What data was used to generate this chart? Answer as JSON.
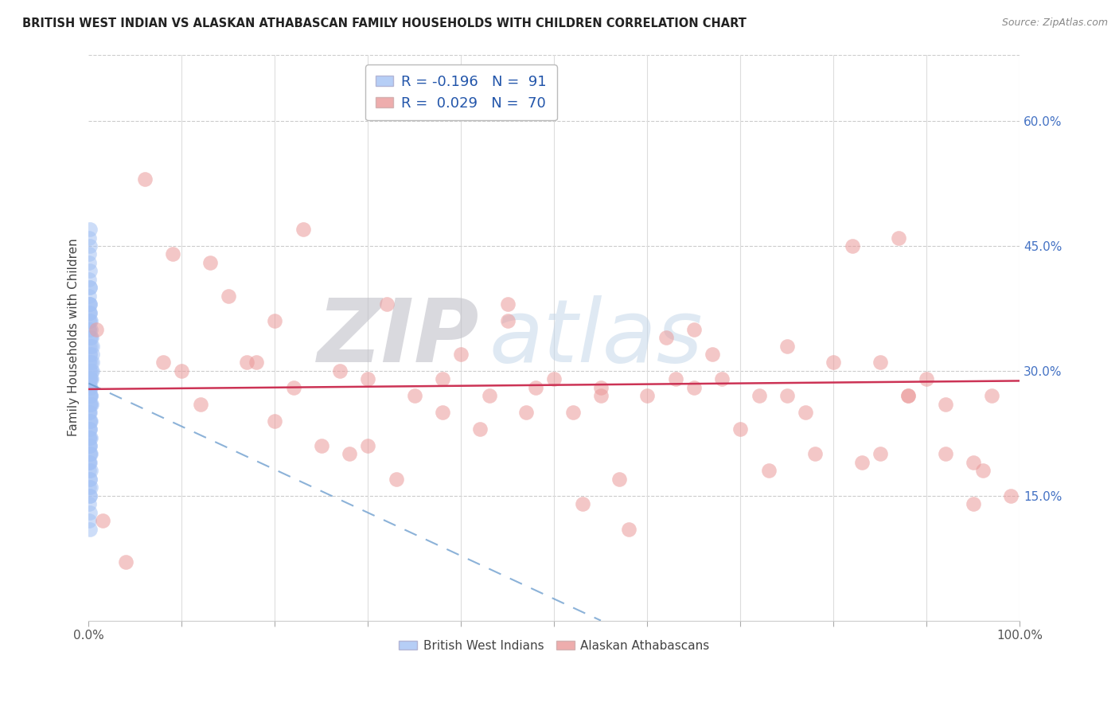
{
  "title": "BRITISH WEST INDIAN VS ALASKAN ATHABASCAN FAMILY HOUSEHOLDS WITH CHILDREN CORRELATION CHART",
  "source": "Source: ZipAtlas.com",
  "ylabel": "Family Households with Children",
  "r_blue": -0.196,
  "n_blue": 91,
  "r_pink": 0.029,
  "n_pink": 70,
  "xlim": [
    0,
    1.0
  ],
  "ylim": [
    0,
    0.68
  ],
  "xticks": [
    0.0,
    0.1,
    0.2,
    0.3,
    0.4,
    0.5,
    0.6,
    0.7,
    0.8,
    0.9,
    1.0
  ],
  "yticks_right": [
    0.15,
    0.3,
    0.45,
    0.6
  ],
  "ytick_labels_right": [
    "15.0%",
    "30.0%",
    "45.0%",
    "60.0%"
  ],
  "legend_label_blue": "British West Indians",
  "legend_label_pink": "Alaskan Athabascans",
  "color_blue": "#a4c2f4",
  "color_pink": "#ea9999",
  "trend_color_blue": "#6699cc",
  "trend_color_pink": "#cc3355",
  "background_color": "#ffffff",
  "blue_x": [
    0.0005,
    0.001,
    0.0015,
    0.002,
    0.0025,
    0.003,
    0.0035,
    0.004,
    0.0005,
    0.001,
    0.0015,
    0.002,
    0.0025,
    0.003,
    0.0035,
    0.004,
    0.0005,
    0.001,
    0.0015,
    0.002,
    0.0025,
    0.003,
    0.0005,
    0.001,
    0.0015,
    0.002,
    0.0025,
    0.003,
    0.0005,
    0.001,
    0.0015,
    0.002,
    0.0025,
    0.0005,
    0.001,
    0.0015,
    0.002,
    0.0025,
    0.0005,
    0.001,
    0.0015,
    0.002,
    0.0005,
    0.001,
    0.0015,
    0.002,
    0.0005,
    0.001,
    0.0015,
    0.002,
    0.0005,
    0.001,
    0.0015,
    0.0005,
    0.001,
    0.0015,
    0.0005,
    0.001,
    0.0015,
    0.0005,
    0.001,
    0.0005,
    0.001,
    0.0005,
    0.001,
    0.0005,
    0.001,
    0.0005,
    0.001,
    0.0005,
    0.001,
    0.0005,
    0.001,
    0.0005,
    0.001,
    0.0005,
    0.001,
    0.0005,
    0.001,
    0.0005,
    0.001,
    0.0005,
    0.001,
    0.0005,
    0.001,
    0.0005,
    0.001,
    0.0005,
    0.001,
    0.0005,
    0.001
  ],
  "blue_y": [
    0.38,
    0.4,
    0.37,
    0.36,
    0.35,
    0.34,
    0.33,
    0.32,
    0.31,
    0.3,
    0.29,
    0.28,
    0.27,
    0.26,
    0.31,
    0.3,
    0.29,
    0.28,
    0.32,
    0.33,
    0.34,
    0.29,
    0.35,
    0.34,
    0.28,
    0.27,
    0.26,
    0.3,
    0.36,
    0.37,
    0.25,
    0.24,
    0.31,
    0.39,
    0.38,
    0.23,
    0.22,
    0.29,
    0.41,
    0.4,
    0.21,
    0.2,
    0.43,
    0.42,
    0.19,
    0.18,
    0.44,
    0.45,
    0.17,
    0.16,
    0.46,
    0.47,
    0.15,
    0.22,
    0.23,
    0.24,
    0.25,
    0.26,
    0.27,
    0.19,
    0.2,
    0.33,
    0.32,
    0.31,
    0.3,
    0.21,
    0.22,
    0.28,
    0.29,
    0.18,
    0.17,
    0.35,
    0.36,
    0.14,
    0.13,
    0.23,
    0.24,
    0.16,
    0.15,
    0.37,
    0.38,
    0.12,
    0.11,
    0.25,
    0.26,
    0.19,
    0.2,
    0.28,
    0.27,
    0.22,
    0.21
  ],
  "pink_x": [
    0.008,
    0.015,
    0.06,
    0.09,
    0.13,
    0.15,
    0.17,
    0.2,
    0.22,
    0.25,
    0.27,
    0.3,
    0.32,
    0.35,
    0.38,
    0.4,
    0.43,
    0.45,
    0.48,
    0.5,
    0.52,
    0.55,
    0.57,
    0.6,
    0.62,
    0.65,
    0.67,
    0.7,
    0.72,
    0.75,
    0.77,
    0.8,
    0.82,
    0.85,
    0.88,
    0.9,
    0.92,
    0.95,
    0.97,
    0.99,
    0.04,
    0.08,
    0.12,
    0.18,
    0.23,
    0.28,
    0.33,
    0.42,
    0.47,
    0.53,
    0.58,
    0.63,
    0.68,
    0.73,
    0.78,
    0.83,
    0.87,
    0.92,
    0.96,
    0.1,
    0.2,
    0.3,
    0.45,
    0.55,
    0.65,
    0.75,
    0.85,
    0.95,
    0.38,
    0.88
  ],
  "pink_y": [
    0.35,
    0.12,
    0.53,
    0.44,
    0.43,
    0.39,
    0.31,
    0.36,
    0.28,
    0.21,
    0.3,
    0.29,
    0.38,
    0.27,
    0.29,
    0.32,
    0.27,
    0.36,
    0.28,
    0.29,
    0.25,
    0.28,
    0.17,
    0.27,
    0.34,
    0.28,
    0.32,
    0.23,
    0.27,
    0.33,
    0.25,
    0.31,
    0.45,
    0.31,
    0.27,
    0.29,
    0.26,
    0.19,
    0.27,
    0.15,
    0.07,
    0.31,
    0.26,
    0.31,
    0.47,
    0.2,
    0.17,
    0.23,
    0.25,
    0.14,
    0.11,
    0.29,
    0.29,
    0.18,
    0.2,
    0.19,
    0.46,
    0.2,
    0.18,
    0.3,
    0.24,
    0.21,
    0.38,
    0.27,
    0.35,
    0.27,
    0.2,
    0.14,
    0.25,
    0.27
  ]
}
